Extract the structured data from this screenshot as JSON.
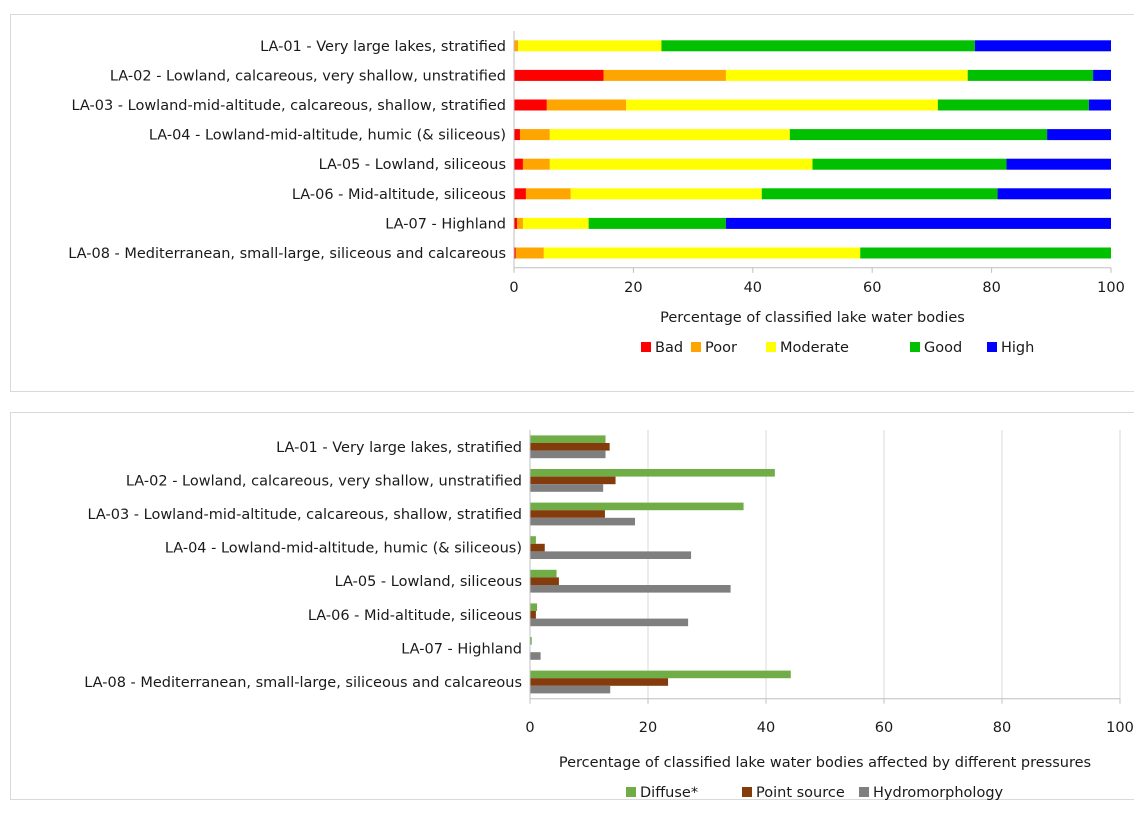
{
  "chart_data": [
    {
      "type": "bar",
      "orientation": "horizontal",
      "stacked": true,
      "categories": [
        "LA-01 - Very large lakes, stratified",
        "LA-02 - Lowland, calcareous, very shallow, unstratified",
        "LA-03 - Lowland-mid-altitude, calcareous, shallow, stratified",
        "LA-04 - Lowland-mid-altitude, humic (& siliceous)",
        "LA-05 - Lowland, siliceous",
        "LA-06 - Mid-altitude, siliceous",
        "LA-07 - Highland",
        "LA-08 - Mediterranean, small-large, siliceous and calcareous"
      ],
      "series": [
        {
          "name": "Bad",
          "color": "#ff0000",
          "values": [
            0,
            15,
            5.5,
            1,
            1.5,
            2,
            0.5,
            0.3
          ]
        },
        {
          "name": "Poor",
          "color": "#ffa500",
          "values": [
            0.7,
            20.5,
            13.3,
            5,
            4.5,
            7.5,
            1,
            4.7
          ]
        },
        {
          "name": "Moderate",
          "color": "#ffff00",
          "values": [
            24,
            40.5,
            52.2,
            40.2,
            44,
            32,
            11,
            53
          ]
        },
        {
          "name": "Good",
          "color": "#00c000",
          "values": [
            52.5,
            21,
            25.3,
            43.1,
            32.5,
            39.5,
            23,
            42
          ]
        },
        {
          "name": "High",
          "color": "#0000ff",
          "values": [
            22.8,
            3,
            3.7,
            10.7,
            17.5,
            19,
            64.5,
            0
          ]
        }
      ],
      "xlabel": "Percentage of classified lake water bodies",
      "xlim": [
        0,
        100
      ],
      "xticks": [
        0,
        20,
        40,
        60,
        80,
        100
      ],
      "grid": false,
      "legend_position": "bottom"
    },
    {
      "type": "bar",
      "orientation": "horizontal",
      "stacked": false,
      "categories": [
        "LA-01 - Very large lakes, stratified",
        "LA-02 - Lowland, calcareous, very shallow, unstratified",
        "LA-03 - Lowland-mid-altitude, calcareous, shallow, stratified",
        "LA-04 - Lowland-mid-altitude, humic (& siliceous)",
        "LA-05 - Lowland, siliceous",
        "LA-06 - Mid-altitude, siliceous",
        "LA-07 - Highland",
        "LA-08 - Mediterranean, small-large, siliceous and calcareous"
      ],
      "series": [
        {
          "name": "Diffuse*",
          "color": "#70ad47",
          "values": [
            12.8,
            41.5,
            36.2,
            1,
            4.5,
            1.2,
            0.3,
            44.2
          ]
        },
        {
          "name": "Point source",
          "color": "#843c0c",
          "values": [
            13.5,
            14.5,
            12.7,
            2.5,
            4.9,
            1,
            0,
            23.4
          ]
        },
        {
          "name": "Hydromorphology",
          "color": "#7f7f7f",
          "values": [
            12.8,
            12.4,
            17.8,
            27.3,
            34,
            26.8,
            1.8,
            13.6
          ]
        }
      ],
      "xlabel": "Percentage of classified lake water bodies affected by different pressures",
      "xlim": [
        0,
        100
      ],
      "xticks": [
        0,
        20,
        40,
        60,
        80,
        100
      ],
      "grid": true,
      "legend_position": "bottom"
    }
  ]
}
